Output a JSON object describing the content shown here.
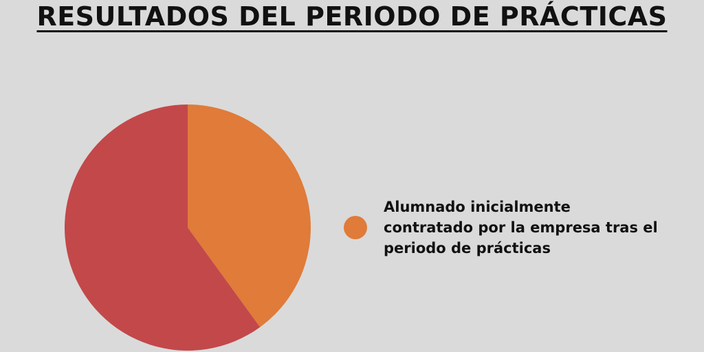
{
  "chart_data": {
    "type": "pie",
    "title": "RESULTADOS DEL PERIODO DE PRÁCTICAS",
    "slices": [
      {
        "label": "Alumnado inicialmente contratado por la empresa tras el periodo de prácticas",
        "value": 40,
        "color": "#e07b39"
      },
      {
        "label": "",
        "value": 60,
        "color": "#c3484a"
      }
    ],
    "start_angle_deg": 0,
    "direction": "clockwise",
    "legend_position": "right"
  },
  "colors": {
    "background": "#dadada",
    "text": "#111111"
  }
}
